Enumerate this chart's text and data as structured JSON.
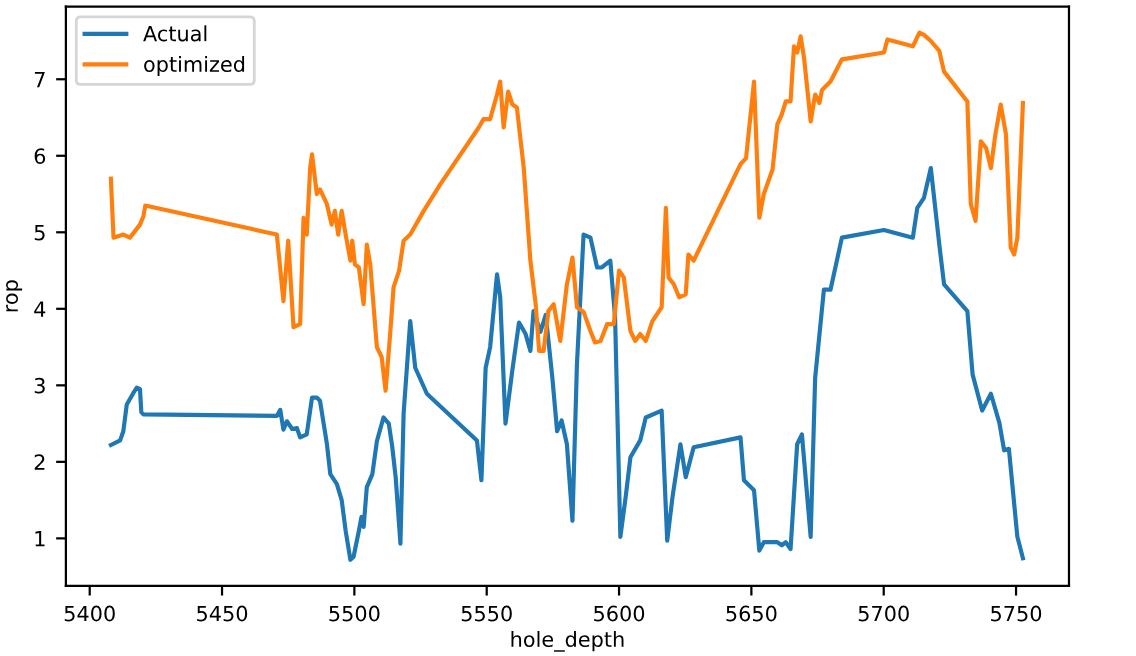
{
  "chart_data": {
    "type": "line",
    "xlabel": "hole_depth",
    "ylabel": "rop",
    "xlim": [
      5391,
      5770
    ],
    "ylim": [
      0.38,
      7.95
    ],
    "xticks": [
      5400,
      5450,
      5500,
      5550,
      5600,
      5650,
      5700,
      5750
    ],
    "yticks": [
      1,
      2,
      3,
      4,
      5,
      6,
      7
    ],
    "grid": false,
    "legend": "top left",
    "series": [
      {
        "name": "Actual",
        "color": "#1f77b4",
        "x": [
          5408,
          5411.5,
          5412.7,
          5414,
          5416.5,
          5417.8,
          5419,
          5419.5,
          5420.3,
          5470.7,
          5472,
          5473.2,
          5474.5,
          5476.5,
          5478.3,
          5479.5,
          5482,
          5484,
          5485.8,
          5487,
          5489.6,
          5490.9,
          5493.4,
          5495.2,
          5496.7,
          5498.5,
          5499.7,
          5501.7,
          5502.7,
          5503.5,
          5504.7,
          5506.8,
          5508.5,
          5511,
          5513,
          5514.3,
          5515.6,
          5517.4,
          5518.6,
          5521.1,
          5523,
          5527.4,
          5546.3,
          5548,
          5549.6,
          5551.3,
          5553.9,
          5555.1,
          5557.1,
          5559.7,
          5562.2,
          5564.7,
          5566.5,
          5567.7,
          5570.3,
          5572.3,
          5574.8,
          5576.6,
          5578.3,
          5580.3,
          5582.4,
          5584.1,
          5586.6,
          5589.2,
          5591.7,
          5593.5,
          5596.7,
          5598.5,
          5600.5,
          5602.5,
          5604.3,
          5608,
          5610.1,
          5616.1,
          5618.2,
          5620.2,
          5623.2,
          5625.2,
          5628.2,
          5645.9,
          5647.2,
          5651,
          5653,
          5654.7,
          5659.8,
          5661.5,
          5663,
          5664.8,
          5667.3,
          5669.1,
          5672.4,
          5674.1,
          5677.4,
          5679.9,
          5684.2,
          5700.1,
          5711,
          5712.7,
          5715.2,
          5717.8,
          5721,
          5722.8,
          5731.6,
          5733.6,
          5737.2,
          5740.5,
          5743.7,
          5745.5,
          5747.3,
          5750.5,
          5752.6
        ],
        "values": [
          2.22,
          2.28,
          2.4,
          2.75,
          2.9,
          2.97,
          2.95,
          2.65,
          2.62,
          2.6,
          2.68,
          2.42,
          2.53,
          2.43,
          2.44,
          2.32,
          2.36,
          2.84,
          2.84,
          2.8,
          2.24,
          1.84,
          1.71,
          1.5,
          1.1,
          0.72,
          0.76,
          1.1,
          1.28,
          1.15,
          1.67,
          1.84,
          2.27,
          2.58,
          2.5,
          2.2,
          1.8,
          0.93,
          2.63,
          3.84,
          3.23,
          2.89,
          2.28,
          1.76,
          3.23,
          3.5,
          4.45,
          4.15,
          2.5,
          3.2,
          3.82,
          3.67,
          3.45,
          3.97,
          3.7,
          3.92,
          3.1,
          2.4,
          2.54,
          2.23,
          1.23,
          3.28,
          4.97,
          4.93,
          4.54,
          4.54,
          4.63,
          3.89,
          1.02,
          1.54,
          2.06,
          2.28,
          2.58,
          2.67,
          0.97,
          1.54,
          2.23,
          1.8,
          2.19,
          2.32,
          1.76,
          1.63,
          0.84,
          0.95,
          0.95,
          0.91,
          0.95,
          0.86,
          2.23,
          2.36,
          1.02,
          3.1,
          4.25,
          4.25,
          4.93,
          5.03,
          4.93,
          5.32,
          5.45,
          5.84,
          4.84,
          4.32,
          3.97,
          3.14,
          2.67,
          2.89,
          2.51,
          2.15,
          2.17,
          1.02,
          0.74
        ]
      },
      {
        "name": "optimized",
        "color": "#ff7f0e",
        "x": [
          5408,
          5409,
          5412.7,
          5415.2,
          5419,
          5420.3,
          5421,
          5470.7,
          5473.2,
          5475,
          5477,
          5479.5,
          5480.8,
          5482,
          5483.3,
          5484,
          5485.8,
          5487,
          5489.6,
          5491.4,
          5492.6,
          5493.9,
          5495.2,
          5496.7,
          5498.5,
          5499.2,
          5500.2,
          5501.7,
          5503.5,
          5504.7,
          5506,
          5508.5,
          5510.3,
          5511.8,
          5513.6,
          5514.8,
          5516.9,
          5518.6,
          5521.1,
          5526.2,
          5532.5,
          5547,
          5548.8,
          5551.3,
          5553.9,
          5555.1,
          5556.4,
          5558.1,
          5559.7,
          5561.4,
          5564,
          5566.5,
          5568.5,
          5569.8,
          5571.5,
          5573.3,
          5575.3,
          5577.8,
          5580.3,
          5582.4,
          5584.1,
          5586.6,
          5589.2,
          5590.9,
          5593,
          5595.5,
          5598,
          5600,
          5601.8,
          5604.3,
          5606.1,
          5608,
          5610.1,
          5612.6,
          5616.1,
          5617.7,
          5618.7,
          5620.7,
          5622.7,
          5625.2,
          5626.2,
          5628.2,
          5645.9,
          5648,
          5651,
          5653,
          5654.7,
          5658,
          5659.8,
          5661.5,
          5663,
          5664.8,
          5666.1,
          5667.3,
          5668.6,
          5669.9,
          5672.4,
          5674.1,
          5675.7,
          5676.7,
          5679.9,
          5684.2,
          5700.1,
          5701.4,
          5711,
          5713.5,
          5715.2,
          5717.8,
          5721,
          5722.8,
          5731.6,
          5732.9,
          5734.7,
          5736.7,
          5738.7,
          5740.5,
          5742.2,
          5744.2,
          5746.2,
          5748,
          5749.3,
          5750.5,
          5752.6
        ],
        "values": [
          5.7,
          4.93,
          4.97,
          4.93,
          5.1,
          5.21,
          5.35,
          4.97,
          4.1,
          4.89,
          3.76,
          3.8,
          5.19,
          4.97,
          5.84,
          6.02,
          5.5,
          5.56,
          5.37,
          5.1,
          5.28,
          4.97,
          5.28,
          4.97,
          4.63,
          4.89,
          4.58,
          4.54,
          4.06,
          4.84,
          4.58,
          3.5,
          3.37,
          2.93,
          3.71,
          4.28,
          4.5,
          4.89,
          4.97,
          5.28,
          5.63,
          6.37,
          6.48,
          6.48,
          6.8,
          6.97,
          6.37,
          6.84,
          6.67,
          6.63,
          5.84,
          4.63,
          4.06,
          3.45,
          3.45,
          3.97,
          4.06,
          3.58,
          4.32,
          4.67,
          4.02,
          3.96,
          3.71,
          3.56,
          3.58,
          3.8,
          3.8,
          4.5,
          4.41,
          3.71,
          3.58,
          3.67,
          3.58,
          3.84,
          4.02,
          5.32,
          4.41,
          4.32,
          4.15,
          4.19,
          4.71,
          4.63,
          5.89,
          5.97,
          6.97,
          5.19,
          5.5,
          5.82,
          6.41,
          6.54,
          6.71,
          6.71,
          7.43,
          7.35,
          7.56,
          7.28,
          6.45,
          6.8,
          6.69,
          6.86,
          6.97,
          7.26,
          7.35,
          7.52,
          7.43,
          7.61,
          7.58,
          7.5,
          7.37,
          7.1,
          6.71,
          5.37,
          5.15,
          6.19,
          6.1,
          5.84,
          6.28,
          6.67,
          6.28,
          4.8,
          4.71,
          4.93,
          6.69
        ]
      }
    ]
  }
}
